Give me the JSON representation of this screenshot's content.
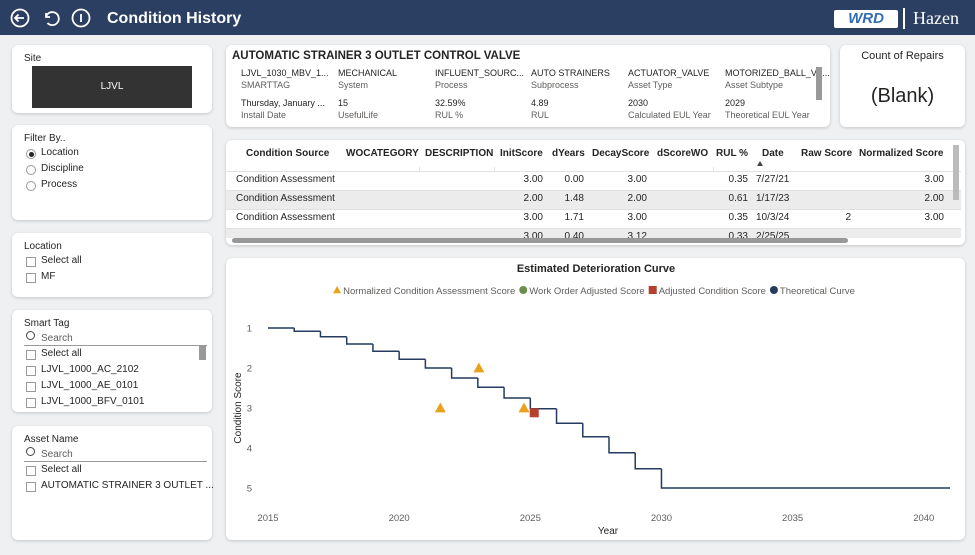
{
  "header": {
    "title": "Condition History",
    "logos": [
      "WRD",
      "Hazen"
    ]
  },
  "filters": {
    "site": {
      "title": "Site",
      "value": "LJVL"
    },
    "filter_by": {
      "title": "Filter By..",
      "options": [
        "Location",
        "Discipline",
        "Process"
      ],
      "selected": 0
    },
    "location": {
      "title": "Location",
      "options": [
        "Select all",
        "MF"
      ]
    },
    "smart_tag": {
      "title": "Smart Tag",
      "search": "Search",
      "options": [
        "Select all",
        "LJVL_1000_AC_2102",
        "LJVL_1000_AE_0101",
        "LJVL_1000_BFV_0101"
      ]
    },
    "asset_name": {
      "title": "Asset Name",
      "search": "Search",
      "options": [
        "Select all",
        "AUTOMATIC STRAINER 3 OUTLET ..."
      ]
    }
  },
  "asset_card": {
    "title": "AUTOMATIC STRAINER 3 OUTLET CONTROL VALVE",
    "fields": [
      {
        "value": "LJVL_1030_MBV_1...",
        "label": "SMARTTAG"
      },
      {
        "value": "MECHANICAL",
        "label": "System"
      },
      {
        "value": "INFLUENT_SOURC...",
        "label": "Process"
      },
      {
        "value": "AUTO STRAINERS",
        "label": "Subprocess"
      },
      {
        "value": "ACTUATOR_VALVE",
        "label": "Asset Type"
      },
      {
        "value": "MOTORIZED_BALL_VA...",
        "label": "Asset Subtype"
      },
      {
        "value": "Thursday, January ...",
        "label": "Install Date"
      },
      {
        "value": "15",
        "label": "UsefulLife"
      },
      {
        "value": "32.59%",
        "label": "RUL %"
      },
      {
        "value": "4.89",
        "label": "RUL"
      },
      {
        "value": "2030",
        "label": "Calculated EUL Year"
      },
      {
        "value": "2029",
        "label": "Theoretical EUL Year"
      }
    ]
  },
  "repairs_card": {
    "title": "Count of Repairs",
    "value": "(Blank)"
  },
  "table": {
    "columns": [
      "Condition Source",
      "WOCATEGORY",
      "DESCRIPTION",
      "InitScore",
      "dYears",
      "DecayScore",
      "dScoreWO",
      "RUL %",
      "Date",
      "Raw Score",
      "Normalized Score"
    ],
    "rows": [
      [
        "Condition Assessment",
        null,
        null,
        "3.00",
        "0.00",
        "3.00",
        null,
        "0.35",
        "7/27/21",
        null,
        "3.00"
      ],
      [
        "Condition Assessment",
        null,
        null,
        "2.00",
        "1.48",
        "2.00",
        null,
        "0.61",
        "1/17/23",
        null,
        "2.00"
      ],
      [
        "Condition Assessment",
        null,
        null,
        "3.00",
        "1.71",
        "3.00",
        null,
        "0.35",
        "10/3/24",
        "2",
        "3.00"
      ],
      [
        null,
        null,
        null,
        "3.00",
        "0.40",
        "3.12",
        null,
        "0.33",
        "2/25/25",
        null,
        null
      ]
    ]
  },
  "chart_data": {
    "type": "line",
    "title": "Estimated Deterioration Curve",
    "x_label": "Year",
    "y_label": "Condition Score",
    "xlim": [
      2015,
      2041
    ],
    "xticks": [
      2015,
      2020,
      2025,
      2030,
      2035,
      2040
    ],
    "ylim": [
      0.7,
      5.3
    ],
    "yticks": [
      1,
      2,
      3,
      4,
      5
    ],
    "y_inverted": true,
    "grid": false,
    "legend": "top",
    "series": [
      {
        "name": "Normalized Condition Assessment Score",
        "color": "#e8a21c",
        "marker": "triangle",
        "x": [
          2021.57,
          2023.04,
          2024.76
        ],
        "values": [
          3,
          2,
          3
        ]
      },
      {
        "name": "Work Order Adjusted Score",
        "color": "#6b8e4e",
        "marker": "circle",
        "x": [],
        "values": []
      },
      {
        "name": "Adjusted Condition Score",
        "color": "#b5402e",
        "marker": "square",
        "x": [
          2025.15
        ],
        "values": [
          3.12
        ]
      },
      {
        "name": "Theoretical Curve",
        "color": "#243a5e",
        "marker": "circle",
        "line": "step",
        "x": [
          2015,
          2016,
          2017,
          2018,
          2019,
          2020,
          2021,
          2022,
          2023,
          2024,
          2025,
          2026,
          2027,
          2028,
          2029,
          2030
        ],
        "values": [
          1.0,
          1.08,
          1.22,
          1.4,
          1.58,
          1.78,
          2.0,
          2.25,
          2.48,
          2.75,
          3.02,
          3.38,
          3.72,
          4.12,
          4.52,
          5.0
        ]
      }
    ]
  }
}
